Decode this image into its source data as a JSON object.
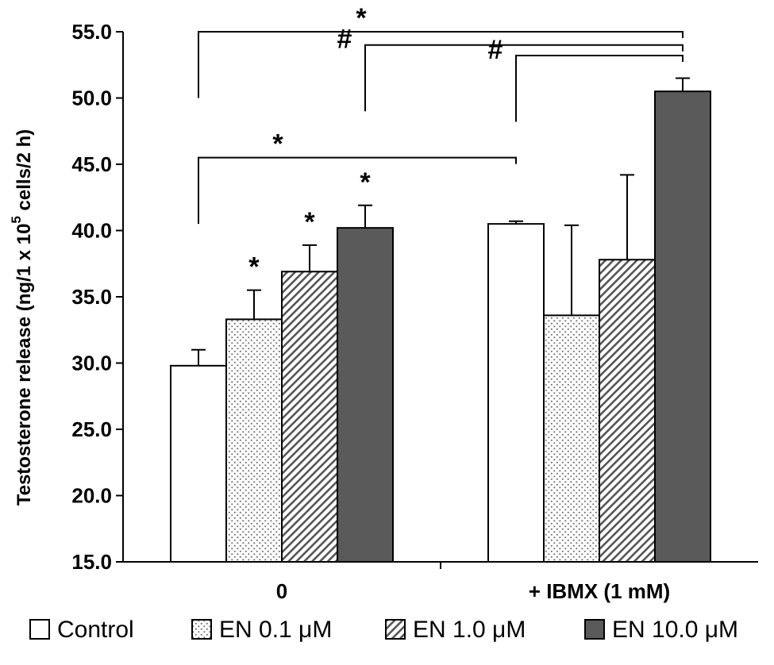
{
  "chart_data": {
    "type": "bar",
    "ylabel": "Testosterone release (ng/1 x 10",
    "ylabel_sup": "5",
    "ylabel_suffix": " cells/2 h)",
    "ylim": [
      15.0,
      55.0
    ],
    "yticks": [
      "15.0",
      "20.0",
      "25.0",
      "30.0",
      "35.0",
      "40.0",
      "45.0",
      "50.0",
      "55.0"
    ],
    "categories": [
      "0",
      "+ IBMX (1 mM)"
    ],
    "series": [
      {
        "name": "Control",
        "values": [
          29.8,
          40.5
        ],
        "errors": [
          1.2,
          0.2
        ],
        "pattern": "white"
      },
      {
        "name": "EN 0.1 μM",
        "values": [
          33.3,
          33.6
        ],
        "errors": [
          2.2,
          6.8
        ],
        "pattern": "dots"
      },
      {
        "name": "EN 1.0 μM",
        "values": [
          36.9,
          37.8
        ],
        "errors": [
          2.0,
          6.4
        ],
        "pattern": "hatch"
      },
      {
        "name": "EN 10.0 μM",
        "values": [
          40.2,
          50.5
        ],
        "errors": [
          1.7,
          1.0
        ],
        "pattern": "dark"
      }
    ],
    "annotations": [
      {
        "text": "*",
        "category": 0,
        "series": 1
      },
      {
        "text": "*",
        "category": 0,
        "series": 2
      },
      {
        "text": "*",
        "category": 0,
        "series": 3
      }
    ],
    "brackets": [
      {
        "text": "*",
        "from": [
          0,
          0
        ],
        "to": [
          1,
          3
        ],
        "level": 55.0
      },
      {
        "text": "#",
        "from": [
          0,
          3
        ],
        "to": [
          1,
          3
        ],
        "level": 54.0
      },
      {
        "text": "#",
        "from": [
          1,
          0
        ],
        "to": [
          1,
          3
        ],
        "level": 53.2
      },
      {
        "text": "*",
        "from": [
          0,
          0
        ],
        "to": [
          1,
          0
        ],
        "level": 45.5
      }
    ],
    "legend": "bottom",
    "grid": false
  }
}
